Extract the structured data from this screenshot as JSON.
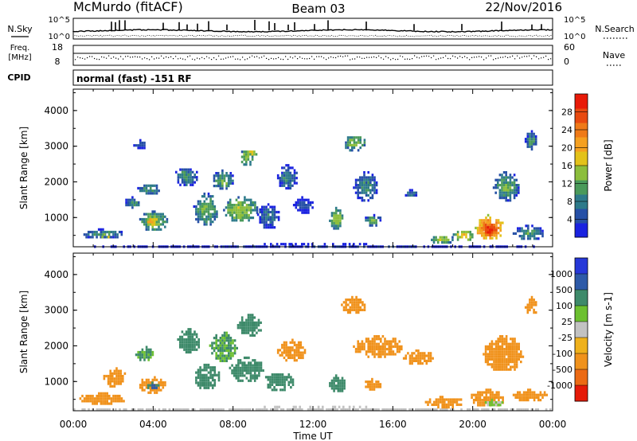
{
  "header": {
    "station": "McMurdo (fitACF)",
    "beam": "Beam 03",
    "date": "22/Nov/2016"
  },
  "strip": {
    "nsky_label": "N.Sky",
    "nsearch_label": "N.Search",
    "nsky_tick_top": "10^5",
    "nsky_tick_bottom": "10^0",
    "freq_label_1": "Freq.",
    "freq_label_2": "[MHz]",
    "freq_ticks": [
      "18",
      "8"
    ],
    "nave_label": "Nave",
    "nave_ticks": [
      "60",
      "0"
    ],
    "cpid_label": "CPID",
    "cpid_text": "normal (fast) -151 RF"
  },
  "chart_data": [
    {
      "type": "heatmap",
      "title": "",
      "xlabel": "Time UT",
      "ylabel": "Slant Range [km]",
      "x_ticks": [
        "00:00",
        "04:00",
        "08:00",
        "12:00",
        "16:00",
        "20:00",
        "00:00"
      ],
      "x_range_hours": [
        0,
        24
      ],
      "y_ticks": [
        1000,
        2000,
        3000,
        4000
      ],
      "y_range_km": [
        180,
        4600
      ],
      "colorbar": {
        "label": "Power [dB]",
        "range": [
          0,
          32
        ],
        "ticks": [
          "4",
          "8",
          "12",
          "16",
          "20",
          "24",
          "28"
        ],
        "colors": [
          "#1a22e0",
          "#2650a6",
          "#2d7a8a",
          "#4a9a5a",
          "#8cbe3c",
          "#e3c21a",
          "#f5a020",
          "#ef7a18",
          "#e84a10",
          "#e81a08"
        ]
      },
      "regions": [
        {
          "t0": 0.0,
          "t1": 24.0,
          "r0": 190,
          "r1": 290,
          "v": 4
        },
        {
          "t0": 0.3,
          "t1": 2.5,
          "r0": 450,
          "r1": 700,
          "v": 10
        },
        {
          "t0": 1.2,
          "t1": 2.0,
          "r0": 480,
          "r1": 560,
          "v": 20
        },
        {
          "t0": 2.5,
          "t1": 3.4,
          "r0": 1300,
          "r1": 1600,
          "v": 9
        },
        {
          "t0": 3.3,
          "t1": 4.7,
          "r0": 650,
          "r1": 1200,
          "v": 14
        },
        {
          "t0": 3.6,
          "t1": 4.2,
          "r0": 800,
          "r1": 1050,
          "v": 22
        },
        {
          "t0": 3.2,
          "t1": 4.3,
          "r0": 1650,
          "r1": 2000,
          "v": 11
        },
        {
          "t0": 3.0,
          "t1": 3.6,
          "r0": 2950,
          "r1": 3200,
          "v": 7
        },
        {
          "t0": 5.0,
          "t1": 6.2,
          "r0": 1900,
          "r1": 2450,
          "v": 10
        },
        {
          "t0": 6.0,
          "t1": 7.2,
          "r0": 800,
          "r1": 1700,
          "v": 13
        },
        {
          "t0": 6.9,
          "t1": 8.0,
          "r0": 1800,
          "r1": 2350,
          "v": 12
        },
        {
          "t0": 7.5,
          "t1": 9.2,
          "r0": 900,
          "r1": 1600,
          "v": 15
        },
        {
          "t0": 8.3,
          "t1": 9.0,
          "r0": 2450,
          "r1": 2950,
          "v": 14
        },
        {
          "t0": 8.6,
          "t1": 9.2,
          "r0": 2750,
          "r1": 2950,
          "v": 18
        },
        {
          "t0": 9.2,
          "t1": 10.3,
          "r0": 700,
          "r1": 1400,
          "v": 8
        },
        {
          "t0": 10.2,
          "t1": 11.2,
          "r0": 1800,
          "r1": 2500,
          "v": 9
        },
        {
          "t0": 11.0,
          "t1": 12.0,
          "r0": 1150,
          "r1": 1600,
          "v": 6
        },
        {
          "t0": 12.8,
          "t1": 13.5,
          "r0": 700,
          "r1": 1300,
          "v": 14
        },
        {
          "t0": 13.5,
          "t1": 14.6,
          "r0": 2900,
          "r1": 3350,
          "v": 14
        },
        {
          "t0": 14.0,
          "t1": 15.2,
          "r0": 1500,
          "r1": 2300,
          "v": 9
        },
        {
          "t0": 14.5,
          "t1": 15.4,
          "r0": 800,
          "r1": 1100,
          "v": 11
        },
        {
          "t0": 16.5,
          "t1": 17.3,
          "r0": 1600,
          "r1": 1800,
          "v": 7
        },
        {
          "t0": 17.8,
          "t1": 19.0,
          "r0": 300,
          "r1": 550,
          "v": 15
        },
        {
          "t0": 19.0,
          "t1": 20.0,
          "r0": 350,
          "r1": 700,
          "v": 18
        },
        {
          "t0": 20.1,
          "t1": 21.5,
          "r0": 350,
          "r1": 1100,
          "v": 24
        },
        {
          "t0": 20.4,
          "t1": 21.2,
          "r0": 500,
          "r1": 900,
          "v": 30
        },
        {
          "t0": 21.0,
          "t1": 22.3,
          "r0": 1500,
          "r1": 2300,
          "v": 12
        },
        {
          "t0": 22.0,
          "t1": 23.6,
          "r0": 400,
          "r1": 800,
          "v": 11
        },
        {
          "t0": 22.6,
          "t1": 23.2,
          "r0": 2900,
          "r1": 3450,
          "v": 10
        }
      ]
    },
    {
      "type": "heatmap",
      "title": "",
      "xlabel": "Time UT",
      "ylabel": "Slant Range [km]",
      "x_ticks": [
        "00:00",
        "04:00",
        "08:00",
        "12:00",
        "16:00",
        "20:00",
        "00:00"
      ],
      "x_range_hours": [
        0,
        24
      ],
      "y_ticks": [
        1000,
        2000,
        3000,
        4000
      ],
      "y_range_km": [
        180,
        4600
      ],
      "colorbar": {
        "label": "Velocity [m s-1]",
        "ticks": [
          "1000",
          "500",
          "100",
          "25",
          "-25",
          "-100",
          "-500",
          "-1000"
        ],
        "levels": [
          {
            "label": "1000",
            "color": "#2638d8"
          },
          {
            "label": "500",
            "color": "#2d5aa8"
          },
          {
            "label": "100",
            "color": "#3e8a6a"
          },
          {
            "label": "25",
            "color": "#6cc030"
          },
          {
            "label": "",
            "color": "#c2c2c2"
          },
          {
            "label": "-25",
            "color": "#efb11c"
          },
          {
            "label": "-100",
            "color": "#f0921c"
          },
          {
            "label": "-500",
            "color": "#ec6a14"
          },
          {
            "label": "-1000",
            "color": "#e51a08"
          }
        ]
      },
      "regions": [
        {
          "t0": 0.0,
          "t1": 24.0,
          "r0": 190,
          "r1": 320,
          "v": 0
        },
        {
          "t0": 0.2,
          "t1": 2.6,
          "r0": 400,
          "r1": 700,
          "v": -150
        },
        {
          "t0": 1.5,
          "t1": 2.6,
          "r0": 880,
          "r1": 1400,
          "v": -150
        },
        {
          "t0": 3.2,
          "t1": 4.6,
          "r0": 700,
          "r1": 1150,
          "v": -200
        },
        {
          "t0": 3.6,
          "t1": 4.3,
          "r0": 800,
          "r1": 1000,
          "v": 300
        },
        {
          "t0": 3.1,
          "t1": 4.0,
          "r0": 1600,
          "r1": 2000,
          "v": 60
        },
        {
          "t0": 5.2,
          "t1": 6.3,
          "r0": 1800,
          "r1": 2500,
          "v": 150
        },
        {
          "t0": 6.0,
          "t1": 7.3,
          "r0": 800,
          "r1": 1500,
          "v": 150
        },
        {
          "t0": 6.8,
          "t1": 8.2,
          "r0": 1600,
          "r1": 2400,
          "v": 60
        },
        {
          "t0": 7.8,
          "t1": 9.5,
          "r0": 1000,
          "r1": 1700,
          "v": 150
        },
        {
          "t0": 8.2,
          "t1": 9.4,
          "r0": 2300,
          "r1": 2900,
          "v": 100
        },
        {
          "t0": 9.5,
          "t1": 11.0,
          "r0": 750,
          "r1": 1300,
          "v": 200
        },
        {
          "t0": 10.2,
          "t1": 11.6,
          "r0": 1600,
          "r1": 2200,
          "v": -150
        },
        {
          "t0": 12.8,
          "t1": 13.6,
          "r0": 700,
          "r1": 1200,
          "v": 120
        },
        {
          "t0": 13.4,
          "t1": 14.6,
          "r0": 2900,
          "r1": 3400,
          "v": -150
        },
        {
          "t0": 14.0,
          "t1": 16.5,
          "r0": 1700,
          "r1": 2300,
          "v": -150
        },
        {
          "t0": 14.5,
          "t1": 15.4,
          "r0": 800,
          "r1": 1100,
          "v": -150
        },
        {
          "t0": 16.5,
          "t1": 18.0,
          "r0": 1500,
          "r1": 1900,
          "v": -150
        },
        {
          "t0": 17.5,
          "t1": 19.5,
          "r0": 300,
          "r1": 600,
          "v": -150
        },
        {
          "t0": 19.8,
          "t1": 21.6,
          "r0": 320,
          "r1": 800,
          "v": -150
        },
        {
          "t0": 20.5,
          "t1": 21.5,
          "r0": 320,
          "r1": 520,
          "v": 30
        },
        {
          "t0": 20.5,
          "t1": 22.5,
          "r0": 1300,
          "r1": 2300,
          "v": -150
        },
        {
          "t0": 22.0,
          "t1": 23.7,
          "r0": 450,
          "r1": 800,
          "v": -150
        },
        {
          "t0": 22.6,
          "t1": 23.2,
          "r0": 2900,
          "r1": 3400,
          "v": -150
        }
      ]
    }
  ]
}
